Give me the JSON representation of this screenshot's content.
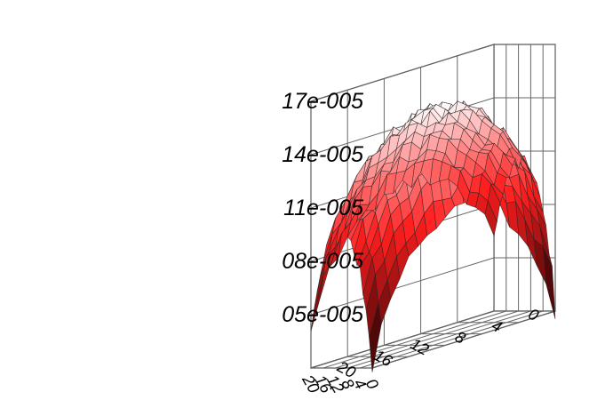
{
  "chart_data": {
    "type": "surface",
    "title": "",
    "xlabel": "",
    "ylabel": "",
    "zlabel": "",
    "grid": true,
    "colormap": [
      "#140000",
      "#ff1e1e",
      "#ffffff"
    ],
    "x_ticks": [
      "0",
      "4",
      "8",
      "12",
      "16",
      "20"
    ],
    "y_ticks": [
      "0",
      "4",
      "8",
      "12",
      "16",
      "20"
    ],
    "z_ticks": [
      "05e-005",
      "08e-005",
      "11e-005",
      "14e-005",
      "17e-005"
    ],
    "x_range": [
      0,
      20
    ],
    "y_range": [
      0,
      20
    ],
    "zlim": [
      2e-05,
      0.00017
    ],
    "grid_points": 21,
    "peak": {
      "x": 10,
      "y": 10,
      "z": 0.00015
    },
    "corners": [
      {
        "x": 0,
        "y": 0,
        "z": 2e-05
      },
      {
        "x": 20,
        "y": 0,
        "z": 6e-05
      },
      {
        "x": 0,
        "y": 20,
        "z": 2e-05
      },
      {
        "x": 20,
        "y": 20,
        "z": 4e-05
      }
    ]
  }
}
